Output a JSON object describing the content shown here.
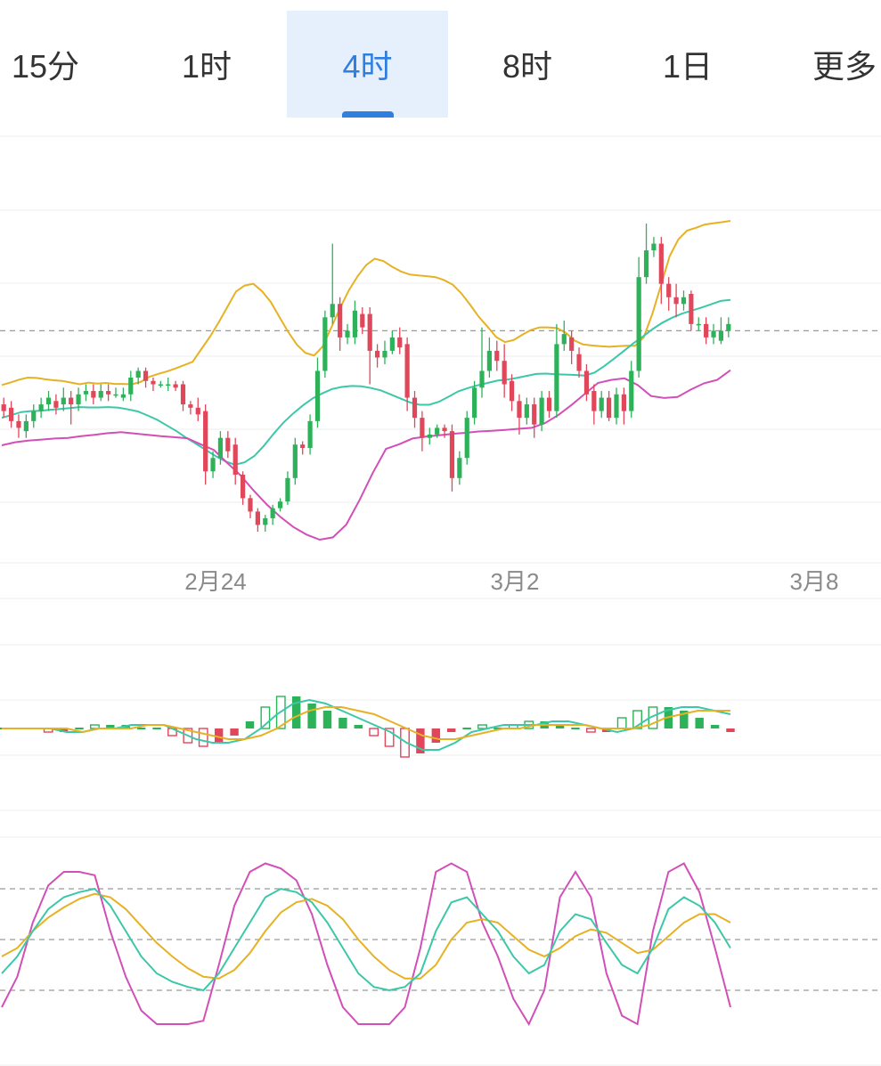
{
  "tabs": [
    {
      "label": "15分",
      "active": false
    },
    {
      "label": "1时",
      "active": false
    },
    {
      "label": "4时",
      "active": true
    },
    {
      "label": "8时",
      "active": false
    },
    {
      "label": "1日",
      "active": false
    },
    {
      "label": "更多",
      "active": false
    }
  ],
  "colors": {
    "up": "#2db25a",
    "down": "#e0475a",
    "boll_upper": "#e6b224",
    "boll_mid": "#3cc8a8",
    "boll_lower": "#d24fb8",
    "grid": "#ececec",
    "dash": "#9a9a9a",
    "accent": "#2f7fe0"
  },
  "chart_data": [
    {
      "type": "candlestick",
      "x_tick_labels": [
        "2月24",
        "3月2",
        "3月8"
      ],
      "y_range": [
        0,
        100
      ],
      "reference_line": 64,
      "candles": [
        [
          42,
          40,
          44,
          38
        ],
        [
          41,
          37,
          43,
          35
        ],
        [
          37,
          35,
          39,
          32
        ],
        [
          34,
          37,
          39,
          32
        ],
        [
          37,
          40,
          42,
          35
        ],
        [
          40,
          42,
          44,
          38
        ],
        [
          42,
          44,
          46,
          40
        ],
        [
          43,
          41,
          45,
          39
        ],
        [
          42,
          44,
          47,
          40
        ],
        [
          44,
          42,
          46,
          36
        ],
        [
          42,
          45,
          47,
          40
        ],
        [
          45,
          46,
          48,
          43
        ],
        [
          46,
          44,
          48,
          42
        ],
        [
          44,
          46,
          48,
          43
        ],
        [
          46,
          45,
          48,
          43
        ],
        [
          45,
          45,
          47,
          44
        ],
        [
          44,
          45,
          47,
          43
        ],
        [
          45,
          50,
          52,
          43
        ],
        [
          50,
          52,
          53,
          48
        ],
        [
          52,
          49,
          53,
          47
        ],
        [
          49,
          48,
          50,
          46
        ],
        [
          48,
          48,
          49,
          47
        ],
        [
          48,
          48,
          50,
          46
        ],
        [
          48,
          47,
          49,
          46
        ],
        [
          48,
          42,
          49,
          40
        ],
        [
          42,
          41,
          43,
          39
        ],
        [
          41,
          39,
          44,
          37
        ],
        [
          40,
          22,
          42,
          18
        ],
        [
          22,
          26,
          28,
          20
        ],
        [
          26,
          32,
          34,
          24
        ],
        [
          32,
          28,
          34,
          26
        ],
        [
          30,
          21,
          32,
          18
        ],
        [
          21,
          14,
          22,
          12
        ],
        [
          14,
          10,
          15,
          8
        ],
        [
          10,
          6,
          11,
          4
        ],
        [
          6,
          8,
          9,
          4
        ],
        [
          8,
          11,
          12,
          6
        ],
        [
          11,
          13,
          14,
          10
        ],
        [
          13,
          20,
          22,
          12
        ],
        [
          20,
          30,
          32,
          18
        ],
        [
          30,
          29,
          31,
          27
        ],
        [
          29,
          37,
          39,
          27
        ],
        [
          37,
          52,
          56,
          35
        ],
        [
          52,
          68,
          70,
          50
        ],
        [
          68,
          72,
          90,
          66
        ],
        [
          72,
          62,
          74,
          58
        ],
        [
          62,
          64,
          66,
          60
        ],
        [
          62,
          70,
          73,
          60
        ],
        [
          69,
          65,
          71,
          63
        ],
        [
          69,
          58,
          71,
          48
        ],
        [
          58,
          56,
          60,
          53
        ],
        [
          56,
          58,
          61,
          54
        ],
        [
          58,
          62,
          64,
          57
        ],
        [
          62,
          59,
          65,
          57
        ],
        [
          60,
          44,
          62,
          40
        ],
        [
          44,
          38,
          46,
          35
        ],
        [
          38,
          32,
          40,
          28
        ],
        [
          32,
          33,
          35,
          30
        ],
        [
          33,
          35,
          36,
          32
        ],
        [
          35,
          34,
          36,
          32
        ],
        [
          34,
          20,
          36,
          16
        ],
        [
          20,
          26,
          28,
          18
        ],
        [
          26,
          38,
          40,
          24
        ],
        [
          38,
          47,
          49,
          36
        ],
        [
          47,
          52,
          65,
          44
        ],
        [
          52,
          58,
          62,
          50
        ],
        [
          58,
          55,
          61,
          52
        ],
        [
          55,
          48,
          60,
          44
        ],
        [
          49,
          43,
          51,
          40
        ],
        [
          43,
          38,
          45,
          33
        ],
        [
          38,
          42,
          44,
          36
        ],
        [
          42,
          36,
          44,
          32
        ],
        [
          36,
          44,
          46,
          34
        ],
        [
          44,
          40,
          46,
          38
        ],
        [
          40,
          60,
          66,
          38
        ],
        [
          60,
          63,
          67,
          58
        ],
        [
          62,
          58,
          64,
          54
        ],
        [
          57,
          52,
          59,
          50
        ],
        [
          52,
          45,
          54,
          43
        ],
        [
          46,
          40,
          48,
          36
        ],
        [
          40,
          44,
          46,
          38
        ],
        [
          44,
          38,
          46,
          37
        ],
        [
          38,
          45,
          47,
          36
        ],
        [
          45,
          40,
          47,
          36
        ],
        [
          40,
          52,
          55,
          38
        ],
        [
          52,
          80,
          86,
          50
        ],
        [
          80,
          88,
          96,
          78
        ],
        [
          88,
          90,
          92,
          86
        ],
        [
          90,
          78,
          92,
          72
        ],
        [
          78,
          74,
          80,
          70
        ],
        [
          74,
          72,
          78,
          68
        ],
        [
          72,
          74,
          76,
          70
        ],
        [
          75,
          66,
          76,
          64
        ],
        [
          66,
          66,
          68,
          64
        ],
        [
          66,
          62,
          68,
          60
        ],
        [
          62,
          64,
          66,
          60
        ],
        [
          61,
          64,
          68,
          60
        ],
        [
          64,
          66,
          68,
          62
        ]
      ],
      "boll_upper": [
        47.8,
        48.5,
        49.4,
        50.0,
        49.9,
        49.5,
        49.2,
        49.0,
        48.5,
        48.0,
        48.5,
        48.2,
        48.4,
        48.1,
        48.1,
        48.0,
        48.7,
        50.2,
        51.1,
        51.8,
        52.7,
        53.7,
        54.7,
        58.5,
        62.2,
        66.5,
        71.1,
        75.7,
        77.5,
        78.0,
        75.8,
        72.6,
        68.1,
        63.7,
        59.9,
        57.4,
        56.6,
        59.3,
        65.0,
        70.8,
        76.0,
        80.2,
        83.6,
        85.5,
        84.8,
        83.1,
        81.7,
        80.8,
        80.5,
        80.3,
        80.0,
        79.1,
        77.7,
        75.1,
        71.7,
        68.1,
        65.2,
        62.1,
        60.6,
        61.2,
        62.8,
        64.2,
        65.0,
        65.0,
        64.8,
        63.4,
        61.1,
        59.9,
        59.6,
        59.4,
        59.2,
        59.4,
        59.5,
        59.5,
        62.0,
        69.1,
        77.6,
        86.3,
        91.3,
        93.9,
        94.7,
        95.7,
        96.1,
        96.4,
        96.8
      ],
      "boll_mid": [
        38.0,
        38.8,
        39.7,
        40.0,
        40.1,
        40.4,
        40.6,
        40.9,
        41.2,
        41.1,
        41.1,
        41.2,
        41.0,
        40.5,
        39.9,
        38.7,
        37.4,
        35.7,
        34.0,
        32.0,
        30.2,
        28.4,
        26.6,
        25.0,
        24.0,
        24.7,
        26.6,
        29.7,
        33.3,
        36.6,
        39.3,
        41.7,
        43.8,
        45.3,
        46.6,
        47.2,
        47.5,
        47.4,
        46.9,
        46.2,
        45.0,
        43.8,
        42.6,
        41.9,
        41.9,
        42.8,
        44.3,
        45.9,
        46.9,
        47.7,
        48.4,
        49.1,
        49.4,
        49.9,
        50.5,
        51.1,
        51.2,
        51.0,
        50.9,
        50.8,
        50.6,
        51.5,
        53.4,
        55.6,
        57.9,
        60.2,
        62.3,
        64.5,
        66.4,
        67.9,
        69.1,
        70.0,
        70.9,
        71.9,
        72.9,
        73.2
      ],
      "boll_lower": [
        29.8,
        30.7,
        31.2,
        31.5,
        31.8,
        32.0,
        32.5,
        32.9,
        33.4,
        33.7,
        33.3,
        32.9,
        32.5,
        32.2,
        31.9,
        30.1,
        28.4,
        24.6,
        20.9,
        16.3,
        12.1,
        8.5,
        5.4,
        3.1,
        1.6,
        2.3,
        6.1,
        13.4,
        21.5,
        28.7,
        30.1,
        31.8,
        32.4,
        32.8,
        33.2,
        33.5,
        33.9,
        34.1,
        34.4,
        34.7,
        35.0,
        36.4,
        38.8,
        41.8,
        45.1,
        48.4,
        49.3,
        49.8,
        47.8,
        44.5,
        43.9,
        44.2,
        46.4,
        48.3,
        49.3,
        52.2
      ],
      "macd": [
        0,
        0,
        0,
        -1,
        -1,
        0,
        1,
        1,
        1,
        0,
        0,
        -2,
        -4,
        -5,
        -4,
        -2,
        2,
        6,
        9,
        9,
        7,
        5,
        3,
        1,
        -2,
        -5,
        -8,
        -7,
        -4,
        -1,
        0,
        1,
        0,
        1,
        2,
        2,
        1,
        0,
        -1,
        -1,
        3,
        5,
        6,
        6,
        5,
        3,
        1,
        -1
      ],
      "dif": [
        0,
        0,
        0,
        0,
        -1,
        -1,
        0,
        0,
        1,
        1,
        1,
        -1,
        -3,
        -4,
        -4,
        -3,
        0,
        4,
        7,
        8,
        7,
        5,
        3,
        1,
        -1,
        -4,
        -6,
        -6,
        -4,
        -1,
        0,
        1,
        1,
        1,
        2,
        2,
        1,
        0,
        -1,
        0,
        3,
        5,
        6,
        6,
        5,
        4
      ],
      "dea": [
        0,
        0,
        0,
        0,
        0,
        -1,
        0,
        0,
        0,
        1,
        1,
        0,
        -1,
        -2,
        -3,
        -3,
        -2,
        0,
        3,
        5,
        6,
        6,
        5,
        4,
        2,
        0,
        -2,
        -3,
        -3,
        -2,
        -1,
        0,
        0,
        1,
        1,
        1,
        1,
        0,
        0,
        0,
        1,
        3,
        4,
        5,
        5,
        5
      ],
      "kdj_reference_lines": [
        80,
        50,
        20
      ],
      "k": [
        30,
        40,
        55,
        68,
        75,
        78,
        80,
        70,
        55,
        40,
        30,
        25,
        22,
        20,
        30,
        45,
        60,
        75,
        80,
        78,
        72,
        60,
        45,
        30,
        22,
        20,
        22,
        30,
        55,
        72,
        75,
        65,
        55,
        40,
        30,
        35,
        55,
        65,
        62,
        48,
        35,
        30,
        45,
        68,
        75,
        70,
        60,
        45
      ],
      "d": [
        40,
        45,
        55,
        63,
        69,
        74,
        77,
        75,
        68,
        58,
        48,
        40,
        33,
        28,
        27,
        32,
        42,
        55,
        66,
        72,
        74,
        70,
        62,
        50,
        40,
        32,
        27,
        27,
        35,
        50,
        60,
        62,
        60,
        52,
        44,
        40,
        45,
        52,
        56,
        54,
        48,
        42,
        44,
        52,
        60,
        65,
        65,
        60
      ],
      "j": [
        10,
        28,
        60,
        82,
        90,
        90,
        88,
        55,
        28,
        8,
        0,
        0,
        0,
        2,
        35,
        70,
        90,
        95,
        92,
        85,
        65,
        35,
        10,
        0,
        0,
        0,
        10,
        45,
        90,
        95,
        90,
        60,
        40,
        15,
        0,
        20,
        75,
        90,
        75,
        30,
        5,
        0,
        55,
        90,
        95,
        78,
        45,
        10
      ]
    }
  ]
}
